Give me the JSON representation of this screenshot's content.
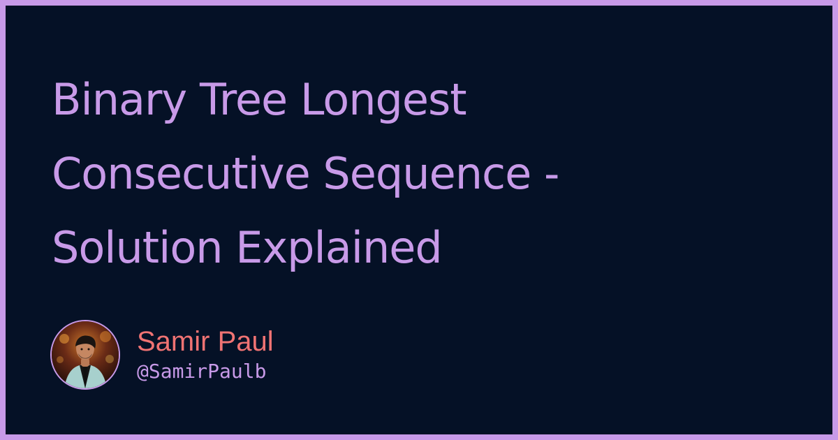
{
  "title": {
    "lines": [
      "Binary Tree Longest",
      "Consecutive Sequence -",
      "Solution Explained"
    ]
  },
  "author": {
    "name": "Samir Paul",
    "handle": "@SamirPaulb",
    "avatar_icon": "person-photo-avatar"
  },
  "colors": {
    "frame": "#c89ae8",
    "background": "#051126",
    "title": "#c89ae8",
    "author_name": "#f07373",
    "handle": "#c89ae8"
  }
}
